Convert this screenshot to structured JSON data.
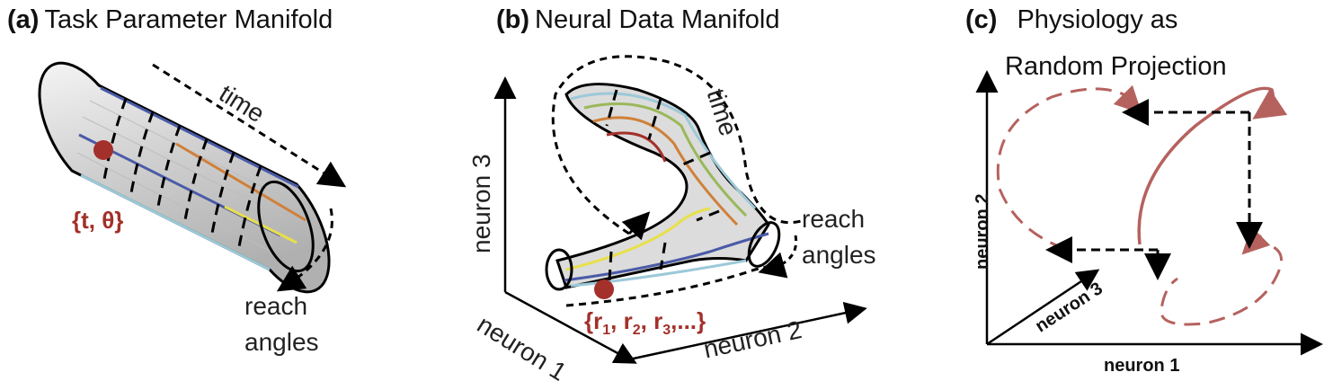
{
  "panel_a": {
    "tag": "(a)",
    "title": "Task Parameter Manifold",
    "time_label": "time",
    "point_label": "{t, θ}",
    "reach_line1": "reach",
    "reach_line2": "angles"
  },
  "panel_b": {
    "tag": "(b)",
    "title": "Neural Data Manifold",
    "time_label": "time",
    "reach_line1": "reach",
    "reach_line2": "angles",
    "axis_neuron1": "neuron 1",
    "axis_neuron2": "neuron 2",
    "axis_neuron3": "neuron 3",
    "point_label_parts": [
      "{r",
      "1",
      ", r",
      "2",
      ", r",
      "3",
      ",...}"
    ]
  },
  "panel_c": {
    "tag": "(c)",
    "title_line1": "Physiology as",
    "title_line2": "Random Projection",
    "axis_neuron1": "neuron 1",
    "axis_neuron2": "neuron 2",
    "axis_neuron3": "neuron 3"
  },
  "colors": {
    "accent_red": "#a3302a",
    "curve_red": "#b5625e",
    "stripe_blue": "#4a5aa8",
    "stripe_orange": "#d0803a",
    "stripe_yellow": "#e8e04a",
    "stripe_green": "#9ab85a",
    "stripe_lightblue": "#9cc9d8"
  }
}
